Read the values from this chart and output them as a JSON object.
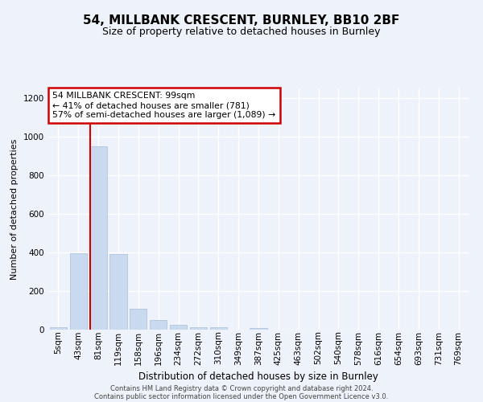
{
  "title_line1": "54, MILLBANK CRESCENT, BURNLEY, BB10 2BF",
  "title_line2": "Size of property relative to detached houses in Burnley",
  "xlabel": "Distribution of detached houses by size in Burnley",
  "ylabel": "Number of detached properties",
  "footer_line1": "Contains HM Land Registry data © Crown copyright and database right 2024.",
  "footer_line2": "Contains public sector information licensed under the Open Government Licence v3.0.",
  "categories": [
    "5sqm",
    "43sqm",
    "81sqm",
    "119sqm",
    "158sqm",
    "196sqm",
    "234sqm",
    "272sqm",
    "310sqm",
    "349sqm",
    "387sqm",
    "425sqm",
    "463sqm",
    "502sqm",
    "540sqm",
    "578sqm",
    "616sqm",
    "654sqm",
    "693sqm",
    "731sqm",
    "769sqm"
  ],
  "values": [
    12,
    395,
    950,
    390,
    108,
    52,
    25,
    13,
    13,
    0,
    10,
    0,
    0,
    0,
    0,
    0,
    0,
    0,
    0,
    0,
    0
  ],
  "bar_color": "#c9d9f0",
  "bar_edge_color": "#aabfd6",
  "highlight_bar_index": 2,
  "highlight_line_color": "#cc0000",
  "annotation_text": "54 MILLBANK CRESCENT: 99sqm\n← 41% of detached houses are smaller (781)\n57% of semi-detached houses are larger (1,089) →",
  "annotation_box_color": "#ffffff",
  "annotation_box_edge_color": "#cc0000",
  "ylim": [
    0,
    1250
  ],
  "yticks": [
    0,
    200,
    400,
    600,
    800,
    1000,
    1200
  ],
  "background_color": "#eef2fa",
  "grid_color": "#ffffff",
  "title_fontsize": 11,
  "subtitle_fontsize": 9,
  "ylabel_fontsize": 8,
  "xlabel_fontsize": 8.5,
  "tick_fontsize": 7.5,
  "footer_fontsize": 6,
  "footer_color": "#444444"
}
